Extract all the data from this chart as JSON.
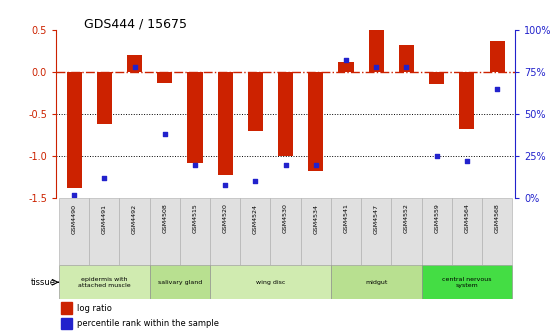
{
  "title": "GDS444 / 15675",
  "samples": [
    "GSM4490",
    "GSM4491",
    "GSM4492",
    "GSM4508",
    "GSM4515",
    "GSM4520",
    "GSM4524",
    "GSM4530",
    "GSM4534",
    "GSM4541",
    "GSM4547",
    "GSM4552",
    "GSM4559",
    "GSM4564",
    "GSM4568"
  ],
  "log_ratio": [
    -1.38,
    -0.62,
    0.2,
    -0.13,
    -1.08,
    -1.22,
    -0.7,
    -1.0,
    -1.18,
    0.12,
    0.5,
    0.32,
    -0.14,
    -0.68,
    0.37
  ],
  "percentile": [
    2,
    12,
    78,
    38,
    20,
    8,
    10,
    20,
    20,
    82,
    78,
    78,
    25,
    22,
    65
  ],
  "ylim_left": [
    -1.5,
    0.5
  ],
  "ylim_right": [
    0,
    100
  ],
  "yticks_left": [
    -1.5,
    -1.0,
    -0.5,
    0.0,
    0.5
  ],
  "yticks_right": [
    0,
    25,
    50,
    75,
    100
  ],
  "ytick_labels_right": [
    "0%",
    "25%",
    "50%",
    "75%",
    "100%"
  ],
  "tissue_groups": [
    {
      "label": "epidermis with\nattached muscle",
      "start": 0,
      "end": 3,
      "color": "#d0ebb0"
    },
    {
      "label": "salivary gland",
      "start": 3,
      "end": 5,
      "color": "#b8e090"
    },
    {
      "label": "wing disc",
      "start": 5,
      "end": 9,
      "color": "#d0ebb0"
    },
    {
      "label": "midgut",
      "start": 9,
      "end": 12,
      "color": "#b8e090"
    },
    {
      "label": "central nervous\nsystem",
      "start": 12,
      "end": 15,
      "color": "#44dd44"
    }
  ],
  "bar_color": "#cc2200",
  "dot_color": "#2222cc",
  "zero_line_color": "#cc2200",
  "dotted_line_color": "#000000",
  "bar_width": 0.5
}
